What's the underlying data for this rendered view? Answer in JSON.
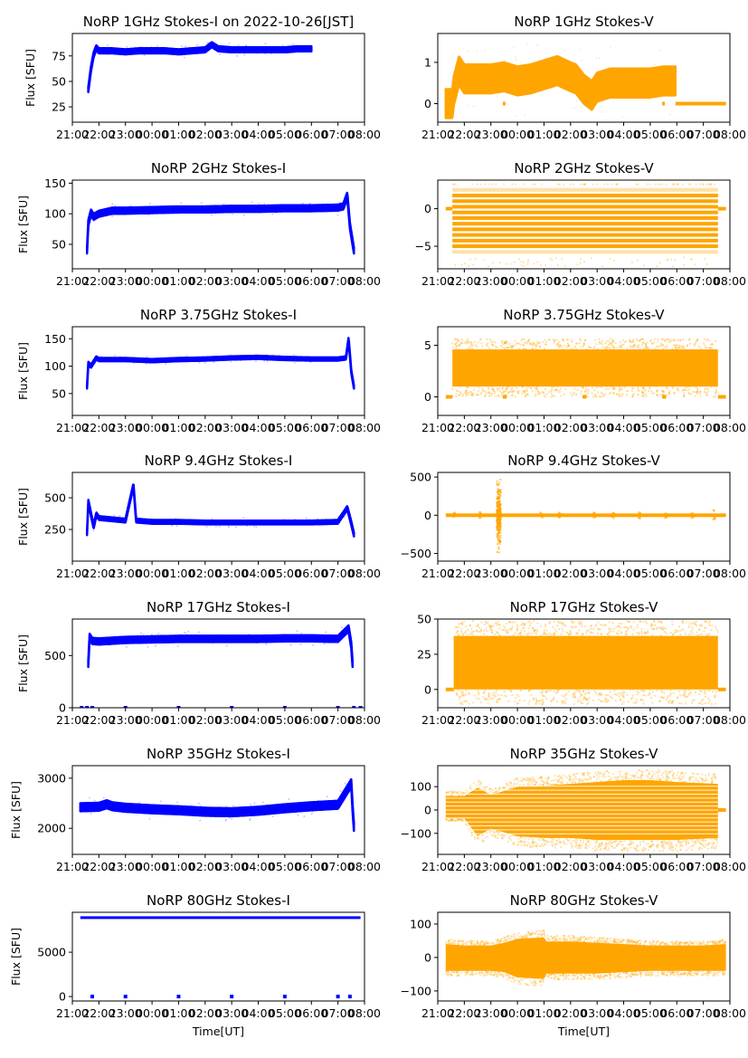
{
  "chart_data": [
    {
      "type": "scatter",
      "title": "NoRP 1GHz Stokes-I on 2022-10-26[JST]",
      "ylabel": "Flux [SFU]",
      "xlabel": "",
      "color": "#0000ff",
      "ylim": [
        10,
        97
      ],
      "yticks": [
        25,
        50,
        75
      ],
      "x_hours": [
        21.6,
        21.7,
        21.8,
        21.9,
        22.0,
        22.5,
        23.0,
        23.5,
        24.0,
        24.5,
        25.0,
        25.5,
        26.0,
        26.25,
        26.5,
        27.0,
        27.5,
        28.0,
        28.5,
        29.0,
        29.5,
        30.0
      ],
      "y_center": [
        42,
        62,
        76,
        83,
        80,
        80,
        79,
        80,
        80,
        80,
        79,
        80,
        81,
        86,
        82,
        81,
        81,
        81,
        81,
        81,
        82,
        82
      ],
      "spread": 2.5
    },
    {
      "type": "scatter",
      "title": "NoRP 1GHz Stokes-V",
      "ylabel": "",
      "xlabel": "",
      "color": "#ffa500",
      "ylim": [
        -0.45,
        1.7
      ],
      "yticks": [
        0,
        1
      ],
      "x_hours": [
        21.3,
        21.55,
        21.6,
        21.8,
        22.0,
        22.5,
        23.0,
        23.5,
        24.0,
        24.5,
        25.0,
        25.5,
        26.0,
        26.2,
        26.5,
        26.8,
        27.0,
        27.5,
        28.0,
        28.5,
        29.0,
        29.5,
        29.95
      ],
      "y_center": [
        0,
        0,
        0.3,
        0.8,
        0.6,
        0.6,
        0.6,
        0.65,
        0.55,
        0.6,
        0.7,
        0.8,
        0.65,
        0.6,
        0.35,
        0.2,
        0.4,
        0.5,
        0.5,
        0.5,
        0.5,
        0.55,
        0.55
      ],
      "spread": 0.35,
      "flat_zero_segments": [
        [
          21.3,
          21.55
        ],
        [
          23.45,
          23.55
        ],
        [
          29.45,
          29.55
        ],
        [
          29.95,
          31.85
        ]
      ]
    },
    {
      "type": "scatter",
      "title": "NoRP 2GHz Stokes-I",
      "ylabel": "Flux [SFU]",
      "xlabel": "",
      "color": "#0000ff",
      "ylim": [
        10,
        155
      ],
      "yticks": [
        50,
        100,
        150
      ],
      "x_hours": [
        21.55,
        21.6,
        21.7,
        21.8,
        22.0,
        22.5,
        23.0,
        24.0,
        25.0,
        26.0,
        27.0,
        28.0,
        29.0,
        30.0,
        31.0,
        31.2,
        31.35,
        31.45,
        31.6
      ],
      "y_center": [
        40,
        85,
        102,
        95,
        100,
        105,
        105,
        106,
        107,
        107,
        108,
        108,
        109,
        109,
        110,
        112,
        130,
        80,
        40
      ],
      "spread": 5
    },
    {
      "type": "scatter",
      "title": "NoRP 2GHz Stokes-V",
      "ylabel": "",
      "xlabel": "",
      "color": "#ffa500",
      "ylim": [
        -8,
        3.8
      ],
      "yticks": [
        -5,
        0
      ],
      "x_hours": [
        21.55,
        31.55
      ],
      "levels": [
        2.5,
        1.75,
        1.0,
        0.25,
        -0.5,
        -1.25,
        -2.0,
        -2.75,
        -3.5,
        -4.25,
        -5.0,
        -5.75
      ],
      "flat_zero_segments": [
        [
          21.3,
          21.55
        ],
        [
          31.55,
          31.85
        ]
      ]
    },
    {
      "type": "scatter",
      "title": "NoRP 3.75GHz Stokes-I",
      "ylabel": "Flux [SFU]",
      "xlabel": "",
      "color": "#0000ff",
      "ylim": [
        10,
        172
      ],
      "yticks": [
        50,
        100,
        150
      ],
      "x_hours": [
        21.55,
        21.6,
        21.7,
        21.9,
        22.0,
        23.0,
        24.0,
        25.0,
        26.0,
        27.0,
        28.0,
        29.0,
        30.0,
        31.0,
        31.3,
        31.4,
        31.5,
        31.6
      ],
      "y_center": [
        62,
        105,
        100,
        115,
        112,
        112,
        110,
        112,
        113,
        115,
        116,
        114,
        113,
        113,
        115,
        150,
        90,
        62
      ],
      "spread": 3
    },
    {
      "type": "scatter",
      "title": "NoRP 3.75GHz Stokes-V",
      "ylabel": "",
      "xlabel": "",
      "color": "#ffa500",
      "ylim": [
        -1.8,
        6.8
      ],
      "yticks": [
        0,
        5
      ],
      "x_hours": [
        21.55,
        31.55
      ],
      "band": [
        1.0,
        4.6
      ],
      "flat_zero_segments": [
        [
          21.3,
          21.55
        ],
        [
          23.45,
          23.6
        ],
        [
          26.45,
          26.6
        ],
        [
          29.45,
          29.6
        ],
        [
          31.55,
          31.85
        ]
      ]
    },
    {
      "type": "scatter",
      "title": "NoRP 9.4GHz Stokes-I",
      "ylabel": "Flux [SFU]",
      "xlabel": "",
      "color": "#0000ff",
      "ylim": [
        0,
        700
      ],
      "yticks": [
        250,
        500
      ],
      "x_hours": [
        21.55,
        21.6,
        21.8,
        21.9,
        22.0,
        22.5,
        23.0,
        23.3,
        23.4,
        24.0,
        25.0,
        26.0,
        27.0,
        28.0,
        29.0,
        30.0,
        31.0,
        31.35,
        31.5,
        31.6
      ],
      "y_center": [
        220,
        470,
        270,
        370,
        340,
        330,
        320,
        600,
        320,
        310,
        310,
        305,
        305,
        305,
        305,
        305,
        310,
        420,
        300,
        210
      ],
      "spread": 15
    },
    {
      "type": "scatter",
      "title": "NoRP 9.4GHz Stokes-V",
      "ylabel": "",
      "xlabel": "",
      "color": "#ffa500",
      "ylim": [
        -600,
        560
      ],
      "yticks": [
        -500,
        0,
        500
      ],
      "x_hours": [
        21.3,
        31.85
      ],
      "spike_hour": 23.3,
      "spike_range": [
        -560,
        520
      ]
    },
    {
      "type": "scatter",
      "title": "NoRP 17GHz Stokes-I",
      "ylabel": "Flux [SFU]",
      "xlabel": "",
      "color": "#0000ff",
      "ylim": [
        0,
        850
      ],
      "yticks": [
        0,
        500
      ],
      "x_hours": [
        21.6,
        21.65,
        21.75,
        22.0,
        23.0,
        24.0,
        25.0,
        26.0,
        27.0,
        28.0,
        29.0,
        30.0,
        31.0,
        31.4,
        31.5,
        31.55
      ],
      "y_center": [
        420,
        680,
        640,
        635,
        650,
        655,
        660,
        660,
        660,
        660,
        665,
        665,
        660,
        760,
        600,
        420
      ],
      "spread": 30,
      "zero_markers_hours": [
        21.35,
        21.55,
        21.75,
        23.0,
        25.0,
        27.0,
        29.0,
        31.0,
        31.6,
        31.85
      ]
    },
    {
      "type": "scatter",
      "title": "NoRP 17GHz Stokes-V",
      "ylabel": "",
      "xlabel": "",
      "color": "#ffa500",
      "ylim": [
        -13,
        50
      ],
      "yticks": [
        0,
        25,
        50
      ],
      "x_hours": [
        21.6,
        31.55
      ],
      "band": [
        0,
        38
      ],
      "flat_zero_segments": [
        [
          21.3,
          21.6
        ],
        [
          31.55,
          31.85
        ]
      ]
    },
    {
      "type": "scatter",
      "title": "NoRP 35GHz Stokes-I",
      "ylabel": "Flux [SFU]",
      "xlabel": "",
      "color": "#0000ff",
      "ylim": [
        1480,
        3250
      ],
      "yticks": [
        2000,
        3000
      ],
      "x_hours": [
        21.3,
        22.0,
        22.3,
        22.5,
        23.0,
        24.0,
        25.0,
        26.0,
        27.0,
        28.0,
        29.0,
        30.0,
        31.0,
        31.5,
        31.55,
        31.6
      ],
      "y_center": [
        2420,
        2430,
        2480,
        2440,
        2410,
        2380,
        2360,
        2330,
        2320,
        2350,
        2400,
        2440,
        2470,
        2900,
        2400,
        2030
      ],
      "spread": 80
    },
    {
      "type": "scatter",
      "title": "NoRP 35GHz Stokes-V",
      "ylabel": "",
      "xlabel": "",
      "color": "#ffa500",
      "ylim": [
        -190,
        190
      ],
      "yticks": [
        -100,
        0,
        100
      ],
      "x_hours": [
        21.3,
        22.0,
        22.5,
        23.0,
        24.0,
        25.0,
        26.0,
        27.0,
        28.0,
        29.0,
        30.0,
        31.55
      ],
      "upper": [
        75,
        75,
        120,
        80,
        125,
        130,
        140,
        150,
        160,
        160,
        150,
        140
      ],
      "lower": [
        -45,
        -45,
        -140,
        -100,
        -140,
        -150,
        -150,
        -160,
        -160,
        -160,
        -160,
        -150
      ],
      "flat_zero_segments": [
        [
          31.55,
          31.85
        ]
      ]
    },
    {
      "type": "scatter",
      "title": "NoRP 80GHz Stokes-I",
      "ylabel": "Flux [SFU]",
      "xlabel": "Time[UT]",
      "color": "#0000ff",
      "ylim": [
        -500,
        9500
      ],
      "yticks": [
        0,
        5000
      ],
      "x_hours": [
        21.3,
        31.85
      ],
      "y_level": 8900,
      "spread": 150,
      "zero_markers_hours": [
        21.75,
        23.0,
        25.0,
        27.0,
        29.0,
        31.0,
        31.45
      ]
    },
    {
      "type": "scatter",
      "title": "NoRP 80GHz Stokes-V",
      "ylabel": "",
      "xlabel": "Time[UT]",
      "color": "#ffa500",
      "ylim": [
        -130,
        135
      ],
      "yticks": [
        -100,
        0,
        100
      ],
      "x_hours": [
        21.3,
        22.0,
        23.0,
        23.5,
        24.0,
        25.0,
        25.1,
        26.0,
        27.0,
        28.0,
        29.0,
        30.0,
        31.0,
        31.85
      ],
      "upper": [
        50,
        45,
        45,
        55,
        70,
        75,
        60,
        60,
        55,
        50,
        45,
        45,
        45,
        50
      ],
      "lower": [
        -50,
        -50,
        -50,
        -55,
        -75,
        -80,
        -60,
        -60,
        -60,
        -55,
        -50,
        -50,
        -50,
        -50
      ]
    }
  ],
  "x_axis": {
    "tick_labels": [
      "21:00",
      "22:00",
      "23:00",
      "00:00",
      "01:00",
      "02:00",
      "03:00",
      "04:00",
      "05:00",
      "06:00",
      "07:00",
      "08:00"
    ],
    "xlim_hours": [
      21.0,
      32.0
    ]
  }
}
